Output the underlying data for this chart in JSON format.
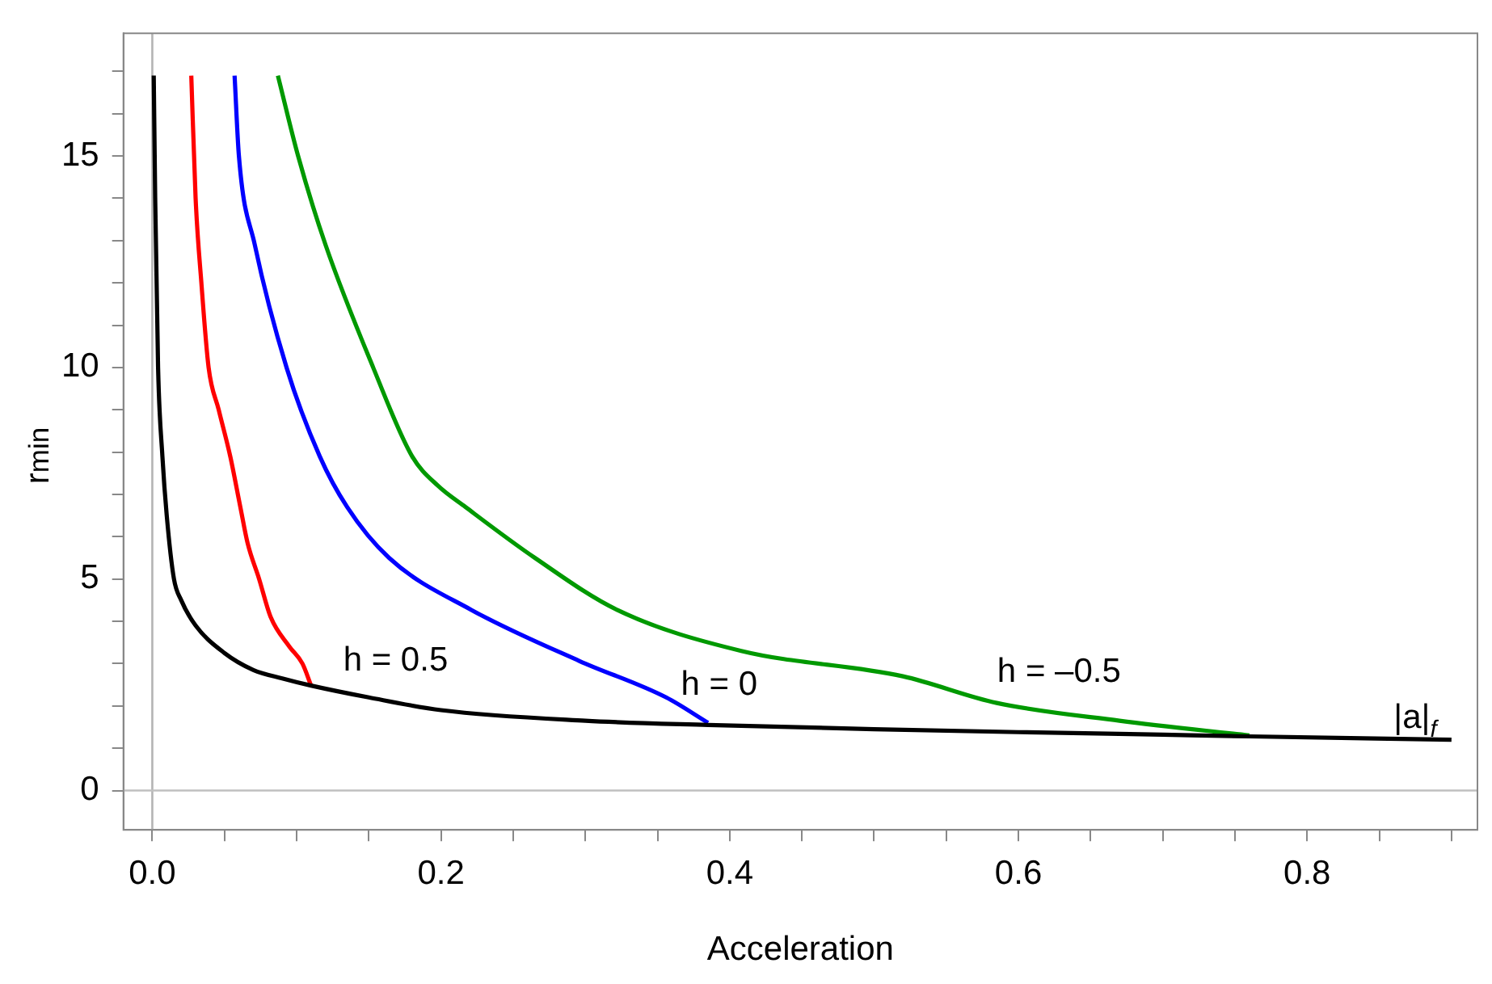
{
  "chart_data": {
    "type": "line",
    "xlabel": "Acceleration",
    "ylabel": "r$_{min}$",
    "xlim": [
      -0.02,
      0.918
    ],
    "ylim": [
      -0.93,
      17.9
    ],
    "xticks": [
      {
        "value": 0,
        "label": "0.0"
      },
      {
        "value": 0.05,
        "label": null
      },
      {
        "value": 0.1,
        "label": null
      },
      {
        "value": 0.15,
        "label": null
      },
      {
        "value": 0.2,
        "label": "0.2"
      },
      {
        "value": 0.25,
        "label": null
      },
      {
        "value": 0.3,
        "label": null
      },
      {
        "value": 0.35,
        "label": null
      },
      {
        "value": 0.4,
        "label": "0.4"
      },
      {
        "value": 0.45,
        "label": null
      },
      {
        "value": 0.5,
        "label": null
      },
      {
        "value": 0.55,
        "label": null
      },
      {
        "value": 0.6,
        "label": "0.6"
      },
      {
        "value": 0.65,
        "label": null
      },
      {
        "value": 0.7,
        "label": null
      },
      {
        "value": 0.75,
        "label": null
      },
      {
        "value": 0.8,
        "label": "0.8"
      },
      {
        "value": 0.85,
        "label": null
      },
      {
        "value": 0.9,
        "label": null
      }
    ],
    "yticks": [
      0,
      {
        "value": 1,
        "label": null
      },
      {
        "value": 2,
        "label": null
      },
      {
        "value": 3,
        "label": null
      },
      {
        "value": 4,
        "label": null
      },
      5,
      {
        "value": 6,
        "label": null
      },
      {
        "value": 7,
        "label": null
      },
      {
        "value": 8,
        "label": null
      },
      {
        "value": 9,
        "label": null
      },
      10,
      {
        "value": 11,
        "label": null
      },
      {
        "value": 12,
        "label": null
      },
      {
        "value": 13,
        "label": null
      },
      {
        "value": 14,
        "label": null
      },
      15,
      {
        "value": 16,
        "label": null
      },
      {
        "value": 17,
        "label": null
      }
    ],
    "marker": "none",
    "grid": false,
    "legend": false,
    "ref_lines": [
      {
        "axis": "x",
        "value": 0,
        "color": "#b4b4b4"
      },
      {
        "axis": "y",
        "value": 0,
        "color": "#c0c0c0"
      }
    ],
    "series": [
      {
        "color": "#000000",
        "x": [
          0.001,
          0.002,
          0.004,
          0.007,
          0.01,
          0.015,
          0.02,
          0.03,
          0.05,
          0.07,
          0.09,
          0.11,
          0.15,
          0.2,
          0.3,
          0.385,
          0.5,
          0.6,
          0.7,
          0.76,
          0.9
        ],
        "values": [
          16.9,
          14,
          10,
          7.9,
          6.5,
          5,
          4.5,
          3.9,
          3.25,
          2.85,
          2.65,
          2.48,
          2.2,
          1.9,
          1.65,
          1.55,
          1.45,
          1.38,
          1.32,
          1.28,
          1.2
        ]
      },
      {
        "color": "#ff0000",
        "x": [
          0.027,
          0.03,
          0.034,
          0.039,
          0.046,
          0.054,
          0.061,
          0.066,
          0.074,
          0.082,
          0.095,
          0.104,
          0.11
        ],
        "values": [
          16.9,
          14,
          12,
          10,
          9,
          7.9,
          6.7,
          5.85,
          5,
          4.1,
          3.4,
          3.0,
          2.48
        ]
      },
      {
        "color": "#0000ff",
        "x": [
          0.057,
          0.06,
          0.071,
          0.093,
          0.116,
          0.135,
          0.164,
          0.221,
          0.296,
          0.356,
          0.385
        ],
        "values": [
          16.9,
          15,
          12.9,
          10,
          7.9,
          6.7,
          5.5,
          4.27,
          3.06,
          2.2,
          1.6
        ]
      },
      {
        "color": "#009900",
        "x": [
          0.087,
          0.101,
          0.12,
          0.153,
          0.18,
          0.198,
          0.217,
          0.265,
          0.322,
          0.408,
          0.52,
          0.585,
          0.67,
          0.76
        ],
        "values": [
          16.9,
          15,
          12.9,
          10,
          7.9,
          7.2,
          6.7,
          5.5,
          4.27,
          3.3,
          2.7,
          2.07,
          1.65,
          1.3
        ]
      }
    ],
    "annotations": [
      "h = 0.5",
      "h = 0",
      "h = –0.5",
      "|a|$_{f}$"
    ]
  }
}
